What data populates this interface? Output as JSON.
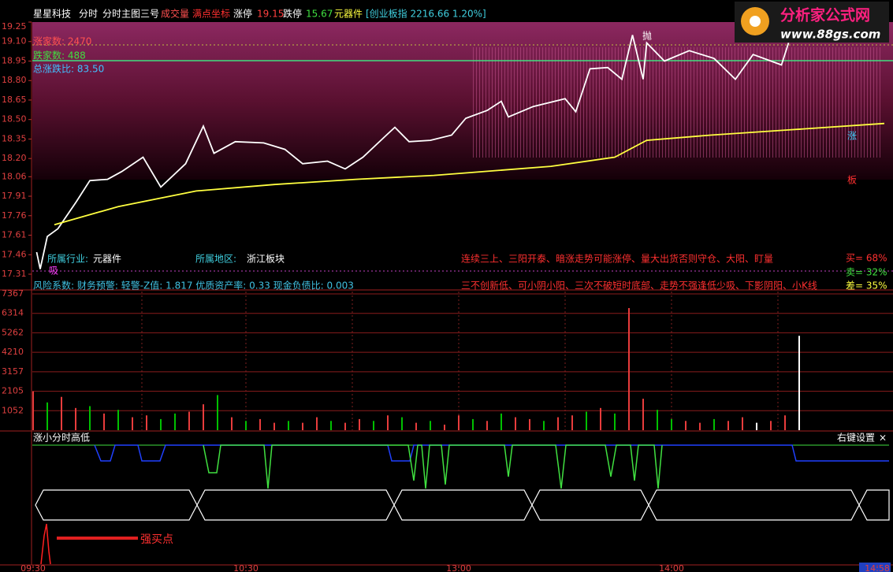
{
  "header": {
    "stock": "星星科技",
    "items": [
      "分时",
      "分时主图三号",
      "成交量",
      "满点坐标"
    ],
    "limit_up_label": "涨停",
    "limit_up": 19.15,
    "limit_down_label": "跌停",
    "limit_down": 15.67,
    "sector": "元器件",
    "index": "[创业板指 2216.66 1.20%]"
  },
  "logo": {
    "title": "分析家公式网",
    "url": "www.88gs.com"
  },
  "price_chart": {
    "type": "line",
    "ylim": [
      17.31,
      19.25
    ],
    "xlim": [
      0,
      240
    ],
    "yticks": [
      19.25,
      {
        "value": 19.1,
        "label": "19.10"
      },
      18.95,
      {
        "value": 18.8,
        "label": "18.80"
      },
      18.65,
      {
        "value": 18.5,
        "label": "18.50"
      },
      18.35,
      {
        "value": 18.2,
        "label": "18.20"
      },
      18.06,
      17.91,
      17.76,
      17.61,
      17.46,
      17.31
    ],
    "series": [
      {
        "color": "#ffffff",
        "x": [
          1,
          2,
          4,
          7,
          12,
          16,
          21,
          25,
          31,
          36,
          43,
          48,
          51,
          57,
          65,
          71,
          76,
          83,
          88,
          93,
          100,
          102,
          106,
          112,
          118,
          122,
          128,
          132,
          134,
          141,
          150,
          153,
          157,
          162,
          166,
          169,
          172,
          173,
          178,
          185,
          192,
          198,
          203,
          211,
          213
        ],
        "values": [
          17.48,
          17.35,
          17.6,
          17.66,
          17.86,
          18.03,
          18.04,
          18.1,
          18.21,
          17.98,
          18.16,
          18.45,
          18.24,
          18.33,
          18.32,
          18.27,
          18.16,
          18.18,
          18.12,
          18.21,
          18.39,
          18.44,
          18.33,
          18.34,
          18.38,
          18.51,
          18.57,
          18.64,
          18.52,
          18.6,
          18.66,
          18.56,
          18.89,
          18.9,
          18.81,
          19.15,
          18.81,
          19.09,
          18.95,
          19.03,
          18.97,
          18.81,
          19.0,
          18.92,
          19.09
        ]
      },
      {
        "color": "#ffff40",
        "x": [
          6,
          24,
          46,
          68,
          91,
          113,
          146,
          164,
          173,
          191,
          213,
          240
        ],
        "values": [
          17.69,
          17.83,
          17.95,
          18.0,
          18.04,
          18.07,
          18.14,
          18.21,
          18.34,
          18.38,
          18.42,
          18.47
        ]
      }
    ],
    "stats": [
      "涨家数: 2470",
      "跌家数: 488",
      "总涨跌比: 83.50"
    ],
    "marks": {
      "buy": "吸",
      "sell": "抛",
      "up": "涨",
      "board": "板"
    }
  },
  "info": {
    "industry_label": "所属行业:",
    "industry": "元器件",
    "region_label": "所属地区:",
    "region": "浙江板块",
    "signals": [
      "连续三上、三阳开泰、暗涨走势可能涨停、量大出货否则守仓、大阳、盯量",
      "三不创新低、可小阴小阳、三次不破短时底部、走势不强逢低少吸、下影阴阳、小K线"
    ],
    "risk": "风险系数: 财务预警: 轻警-Z值: 1.817 优质资产率: 0.33 现金负债比: 0.003",
    "ratios": [
      "买= 68%",
      "卖= 32%",
      "差= 35%"
    ]
  },
  "volume_chart": {
    "type": "bar",
    "ylim": [
      0,
      7367
    ],
    "yticks": [
      7367,
      6314,
      5262,
      4210,
      3157,
      2105,
      1052
    ],
    "x": [
      0,
      4,
      8,
      12,
      16,
      20,
      24,
      28,
      32,
      36,
      40,
      44,
      48,
      52,
      56,
      60,
      64,
      68,
      72,
      76,
      80,
      84,
      88,
      92,
      96,
      100,
      104,
      108,
      112,
      116,
      120,
      124,
      128,
      132,
      136,
      140,
      144,
      148,
      152,
      156,
      160,
      164,
      168,
      172,
      176,
      180,
      184,
      188,
      192,
      196,
      200,
      204,
      208,
      212,
      216
    ],
    "values": [
      2100,
      1500,
      1800,
      1200,
      1300,
      900,
      1100,
      700,
      800,
      600,
      900,
      1000,
      1400,
      1900,
      700,
      500,
      600,
      400,
      500,
      400,
      700,
      500,
      400,
      600,
      500,
      800,
      700,
      400,
      500,
      300,
      800,
      600,
      500,
      900,
      700,
      600,
      500,
      700,
      800,
      1000,
      1200,
      900,
      6600,
      1700,
      1100,
      600,
      500,
      400,
      600,
      500,
      700,
      400,
      500,
      800,
      5100
    ],
    "colors": [
      "#e83c3c",
      "#00c000",
      "#e83c3c",
      "#e83c3c",
      "#00c000",
      "#e83c3c",
      "#00c000",
      "#e83c3c",
      "#e83c3c",
      "#00c000",
      "#00c000",
      "#e83c3c",
      "#e83c3c",
      "#00c000",
      "#e83c3c",
      "#00c000",
      "#e83c3c",
      "#e83c3c",
      "#00c000",
      "#e83c3c",
      "#e83c3c",
      "#00c000",
      "#e83c3c",
      "#e83c3c",
      "#00c000",
      "#e83c3c",
      "#00c000",
      "#e83c3c",
      "#00c000",
      "#e83c3c",
      "#e83c3c",
      "#00c000",
      "#e83c3c",
      "#00c000",
      "#e83c3c",
      "#e83c3c",
      "#00c000",
      "#e83c3c",
      "#e83c3c",
      "#00c000",
      "#e83c3c",
      "#00c000",
      "#e83c3c",
      "#e83c3c",
      "#00c000",
      "#00c000",
      "#e83c3c",
      "#e83c3c",
      "#00c000",
      "#e83c3c",
      "#e83c3c",
      "#ffffff",
      "#e83c3c",
      "#e83c3c",
      "#ffffff"
    ]
  },
  "indicator": {
    "title": "涨小分时高低",
    "settings": "右键设置",
    "close": "×",
    "signal": "强买点"
  },
  "time_axis": {
    "xticks": [
      {
        "value": 0,
        "label": "09:30"
      },
      {
        "value": 60,
        "label": "10:30"
      },
      {
        "value": 120,
        "label": "13:00"
      },
      {
        "value": 180,
        "label": "14:00"
      },
      {
        "value": 238,
        "label": "14:58"
      }
    ]
  }
}
